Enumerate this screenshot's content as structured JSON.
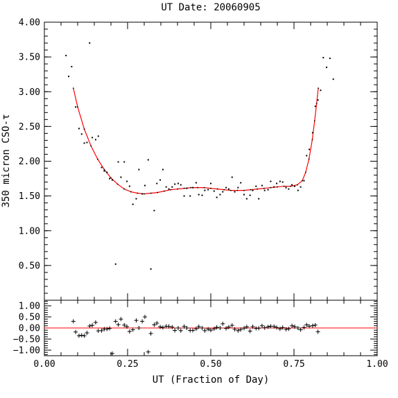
{
  "chart_data": {
    "type": "scatter",
    "title": "UT Date: 20060905",
    "xlabel": "UT (Fraction of Day)",
    "ylabel": "350 micron CSO-τ",
    "fit_color": "#ff0000",
    "point_color": "#000000",
    "main_panel": {
      "xlim": [
        0.0,
        1.0
      ],
      "ylim": [
        0.0,
        4.0
      ],
      "y_ticks": [
        "0.50",
        "1.00",
        "1.50",
        "2.00",
        "2.50",
        "3.00",
        "3.50",
        "4.00"
      ],
      "y_tick_values": [
        0.5,
        1.0,
        1.5,
        2.0,
        2.5,
        3.0,
        3.5,
        4.0
      ],
      "grid": false,
      "series": [
        {
          "kind": "points",
          "x": [
            0.065,
            0.073,
            0.082,
            0.094,
            0.104,
            0.112,
            0.12,
            0.128,
            0.136,
            0.144,
            0.154,
            0.162,
            0.172,
            0.18,
            0.188,
            0.196,
            0.204,
            0.214,
            0.222,
            0.23,
            0.24,
            0.248,
            0.256,
            0.266,
            0.276,
            0.284,
            0.294,
            0.302,
            0.312,
            0.32,
            0.33,
            0.338,
            0.348,
            0.356,
            0.366,
            0.374,
            0.384,
            0.392,
            0.402,
            0.41,
            0.42,
            0.428,
            0.438,
            0.446,
            0.456,
            0.464,
            0.474,
            0.482,
            0.492,
            0.5,
            0.51,
            0.518,
            0.528,
            0.536,
            0.546,
            0.554,
            0.564,
            0.572,
            0.582,
            0.59,
            0.6,
            0.608,
            0.618,
            0.626,
            0.636,
            0.644,
            0.654,
            0.662,
            0.672,
            0.68,
            0.69,
            0.698,
            0.708,
            0.716,
            0.726,
            0.734,
            0.744,
            0.752,
            0.762,
            0.77,
            0.78,
            0.788,
            0.796,
            0.806,
            0.814,
            0.822,
            0.83,
            0.838,
            0.848,
            0.858,
            0.868
          ],
          "y": [
            3.52,
            3.22,
            3.36,
            2.78,
            2.47,
            2.39,
            2.26,
            2.27,
            3.7,
            2.34,
            2.31,
            2.36,
            1.91,
            1.86,
            1.84,
            1.75,
            1.73,
            0.52,
            1.99,
            1.77,
            1.99,
            1.71,
            1.64,
            1.38,
            1.46,
            1.88,
            1.53,
            1.65,
            2.02,
            0.45,
            1.29,
            1.68,
            1.73,
            1.88,
            1.63,
            1.6,
            1.63,
            1.67,
            1.68,
            1.66,
            1.5,
            1.61,
            1.5,
            1.62,
            1.69,
            1.52,
            1.51,
            1.58,
            1.59,
            1.68,
            1.57,
            1.48,
            1.52,
            1.56,
            1.62,
            1.6,
            1.77,
            1.56,
            1.62,
            1.69,
            1.52,
            1.46,
            1.51,
            1.58,
            1.64,
            1.46,
            1.65,
            1.58,
            1.59,
            1.71,
            1.63,
            1.68,
            1.71,
            1.7,
            1.62,
            1.6,
            1.66,
            1.64,
            1.58,
            1.63,
            1.72,
            2.08,
            2.17,
            2.41,
            2.79,
            2.88,
            3.02,
            3.49,
            3.35,
            3.48,
            3.18
          ]
        },
        {
          "kind": "fit",
          "x": [
            0.087,
            0.1,
            0.12,
            0.14,
            0.16,
            0.18,
            0.2,
            0.22,
            0.24,
            0.26,
            0.28,
            0.3,
            0.32,
            0.34,
            0.36,
            0.38,
            0.4,
            0.42,
            0.44,
            0.46,
            0.48,
            0.5,
            0.52,
            0.54,
            0.56,
            0.58,
            0.6,
            0.62,
            0.64,
            0.66,
            0.68,
            0.7,
            0.72,
            0.74,
            0.76,
            0.775,
            0.785,
            0.795,
            0.805,
            0.812,
            0.818,
            0.823
          ],
          "y": [
            3.05,
            2.78,
            2.46,
            2.22,
            2.03,
            1.88,
            1.76,
            1.67,
            1.6,
            1.56,
            1.54,
            1.53,
            1.54,
            1.55,
            1.57,
            1.59,
            1.6,
            1.61,
            1.62,
            1.62,
            1.62,
            1.61,
            1.6,
            1.59,
            1.58,
            1.58,
            1.58,
            1.59,
            1.6,
            1.61,
            1.62,
            1.63,
            1.64,
            1.64,
            1.66,
            1.72,
            1.84,
            2.03,
            2.31,
            2.58,
            2.83,
            3.05
          ]
        }
      ]
    },
    "residual_panel": {
      "xlim": [
        0.0,
        1.0
      ],
      "ylim": [
        -1.25,
        1.25
      ],
      "y_ticks": [
        "−1.00",
        "−0.50",
        "0.00",
        "0.50",
        "1.00"
      ],
      "y_tick_values": [
        -1.0,
        -0.5,
        0.0,
        0.5,
        1.0
      ],
      "x_ticks": [
        "0.00",
        "0.25",
        "0.50",
        "0.75",
        "1.00"
      ],
      "x_tick_values": [
        0.0,
        0.25,
        0.5,
        0.75,
        1.0
      ],
      "zero_line_color": "#ff0000",
      "series": [
        {
          "kind": "residuals",
          "x": [
            0.087,
            0.094,
            0.104,
            0.112,
            0.12,
            0.128,
            0.136,
            0.144,
            0.154,
            0.162,
            0.172,
            0.18,
            0.188,
            0.196,
            0.204,
            0.214,
            0.222,
            0.23,
            0.24,
            0.248,
            0.256,
            0.266,
            0.276,
            0.284,
            0.294,
            0.302,
            0.312,
            0.32,
            0.33,
            0.338,
            0.348,
            0.356,
            0.366,
            0.374,
            0.384,
            0.392,
            0.402,
            0.41,
            0.42,
            0.428,
            0.438,
            0.446,
            0.456,
            0.464,
            0.474,
            0.482,
            0.492,
            0.5,
            0.51,
            0.518,
            0.528,
            0.536,
            0.546,
            0.554,
            0.564,
            0.572,
            0.582,
            0.59,
            0.6,
            0.608,
            0.618,
            0.626,
            0.636,
            0.644,
            0.654,
            0.662,
            0.672,
            0.68,
            0.69,
            0.698,
            0.708,
            0.716,
            0.726,
            0.734,
            0.744,
            0.752,
            0.762,
            0.77,
            0.78,
            0.788,
            0.796,
            0.806,
            0.814,
            0.822
          ],
          "y": [
            0.3,
            -0.18,
            -0.35,
            -0.33,
            -0.35,
            -0.22,
            0.09,
            0.12,
            0.25,
            -0.13,
            -0.12,
            -0.05,
            -0.05,
            -0.02,
            -1.15,
            0.3,
            0.15,
            0.4,
            0.13,
            0.06,
            -0.16,
            -0.08,
            0.34,
            0.0,
            0.3,
            0.5,
            -1.08,
            -0.25,
            0.14,
            0.22,
            0.05,
            0.02,
            0.08,
            0.07,
            0.04,
            -0.11,
            0.0,
            -0.12,
            0.07,
            0.0,
            -0.11,
            -0.11,
            -0.04,
            0.06,
            0.0,
            -0.12,
            -0.05,
            -0.1,
            -0.04,
            0.03,
            0.0,
            0.19,
            -0.02,
            0.04,
            0.12,
            -0.06,
            -0.12,
            -0.07,
            -0.01,
            0.05,
            -0.14,
            0.06,
            -0.02,
            -0.01,
            0.1,
            0.01,
            0.05,
            0.08,
            0.07,
            0.02,
            -0.04,
            0.02,
            -0.06,
            -0.04,
            0.1,
            0.06,
            0.0,
            -0.08,
            0.02,
            0.14,
            0.08,
            0.1,
            0.13,
            -0.17
          ]
        }
      ]
    }
  }
}
